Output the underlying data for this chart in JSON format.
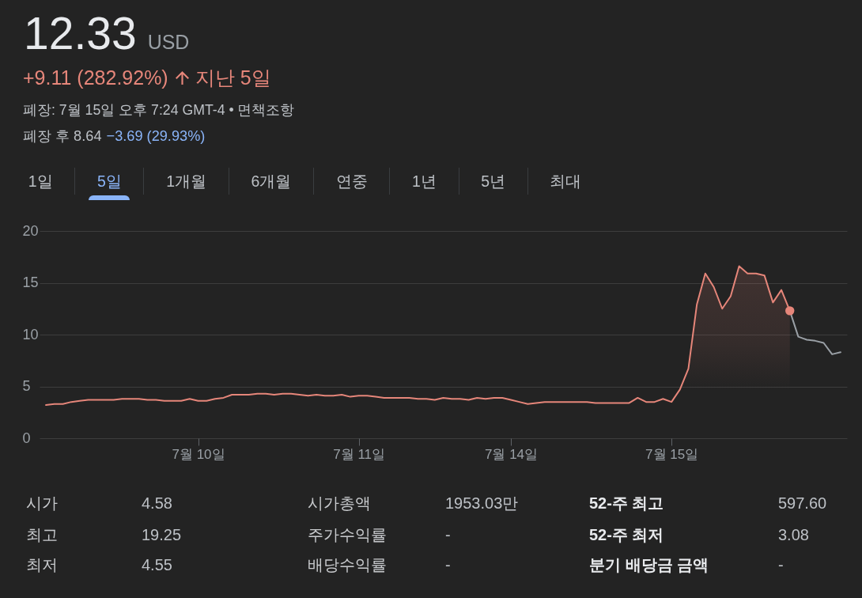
{
  "chart_data": [
    {
      "type": "other",
      "title": "12.33",
      "subtitle": "USD",
      "annotations": [
        "+9.11 (282.92%)",
        "지난 5일",
        "폐장: 7월 15일 오후 7:24 GMT-4 • 면책조항",
        "폐장 후 8.64",
        "−3.69 (29.93%)"
      ]
    },
    {
      "type": "other",
      "categories": [
        "1일",
        "5일",
        "1개월",
        "6개월",
        "연중",
        "1년",
        "5년",
        "최대"
      ],
      "colors": [
        "#bdc1c6",
        "#8ab4f8",
        "#bdc1c6",
        "#bdc1c6",
        "#bdc1c6",
        "#bdc1c6",
        "#bdc1c6",
        "#bdc1c6"
      ]
    },
    {
      "type": "line",
      "categories": [
        null,
        null,
        null,
        null,
        null,
        null,
        null,
        null,
        null,
        null,
        null,
        null,
        null,
        null,
        null,
        null,
        null,
        null,
        "7월 10일",
        null,
        null,
        null,
        null,
        null,
        null,
        null,
        null,
        null,
        null,
        null,
        null,
        null,
        null,
        null,
        null,
        null,
        null,
        "7월 11일",
        null,
        null,
        null,
        null,
        null,
        null,
        null,
        null,
        null,
        null,
        null,
        null,
        null,
        null,
        null,
        null,
        null,
        "7월 14일",
        null,
        null,
        null,
        null,
        null,
        null,
        null,
        null,
        null,
        null,
        null,
        null,
        null,
        null,
        null,
        null,
        null,
        null,
        "7월 15일",
        null,
        null,
        null,
        null,
        null,
        null,
        null,
        null,
        null,
        null,
        null,
        null,
        null,
        null,
        null,
        null,
        null,
        null,
        null,
        null
      ],
      "series": [
        {
          "type": "area",
          "color": "#e6867a",
          "values": [
            3.2,
            3.3,
            3.3,
            3.5,
            3.6,
            3.7,
            3.7,
            3.7,
            3.7,
            3.8,
            3.8,
            3.8,
            3.7,
            3.7,
            3.6,
            3.6,
            3.6,
            3.8,
            3.6,
            3.6,
            3.8,
            3.9,
            4.2,
            4.2,
            4.2,
            4.3,
            4.3,
            4.2,
            4.3,
            4.3,
            4.2,
            4.1,
            4.2,
            4.1,
            4.1,
            4.2,
            4.0,
            4.1,
            4.1,
            4.0,
            3.9,
            3.9,
            3.9,
            3.9,
            3.8,
            3.8,
            3.7,
            3.9,
            3.8,
            3.8,
            3.7,
            3.9,
            3.8,
            3.9,
            3.9,
            3.7,
            3.5,
            3.3,
            3.4,
            3.5,
            3.5,
            3.5,
            3.5,
            3.5,
            3.5,
            3.4,
            3.4,
            3.4,
            3.4,
            3.4,
            3.9,
            3.5,
            3.5,
            3.8,
            3.5,
            4.7,
            6.7,
            12.9,
            15.9,
            14.6,
            12.5,
            13.7,
            16.6,
            15.9,
            15.9,
            15.7,
            13.1,
            14.3,
            12.3,
            null,
            null,
            null,
            null,
            null,
            null
          ]
        },
        {
          "type": "line",
          "color": "#9aa0a6",
          "values": [
            null,
            null,
            null,
            null,
            null,
            null,
            null,
            null,
            null,
            null,
            null,
            null,
            null,
            null,
            null,
            null,
            null,
            null,
            null,
            null,
            null,
            null,
            null,
            null,
            null,
            null,
            null,
            null,
            null,
            null,
            null,
            null,
            null,
            null,
            null,
            null,
            null,
            null,
            null,
            null,
            null,
            null,
            null,
            null,
            null,
            null,
            null,
            null,
            null,
            null,
            null,
            null,
            null,
            null,
            null,
            null,
            null,
            null,
            null,
            null,
            null,
            null,
            null,
            null,
            null,
            null,
            null,
            null,
            null,
            null,
            null,
            null,
            null,
            null,
            null,
            null,
            null,
            null,
            null,
            null,
            null,
            null,
            null,
            null,
            null,
            null,
            null,
            null,
            12.3,
            9.8,
            9.5,
            9.4,
            9.2,
            8.1,
            8.3
          ]
        },
        {
          "type": "scatter",
          "color": "#e6867a",
          "marker": "circle",
          "values": [
            null,
            null,
            null,
            null,
            null,
            null,
            null,
            null,
            null,
            null,
            null,
            null,
            null,
            null,
            null,
            null,
            null,
            null,
            null,
            null,
            null,
            null,
            null,
            null,
            null,
            null,
            null,
            null,
            null,
            null,
            null,
            null,
            null,
            null,
            null,
            null,
            null,
            null,
            null,
            null,
            null,
            null,
            null,
            null,
            null,
            null,
            null,
            null,
            null,
            null,
            null,
            null,
            null,
            null,
            null,
            null,
            null,
            null,
            null,
            null,
            null,
            null,
            null,
            null,
            null,
            null,
            null,
            null,
            null,
            null,
            null,
            null,
            null,
            null,
            null,
            null,
            null,
            null,
            null,
            null,
            null,
            null,
            null,
            null,
            null,
            null,
            null,
            null,
            12.3,
            null,
            null,
            null,
            null,
            null,
            null
          ]
        }
      ],
      "ylim": [
        0,
        20
      ],
      "yticks": [
        0,
        5,
        10,
        15,
        20
      ],
      "grid": "y"
    },
    {
      "type": "other",
      "annotations": [
        "시가",
        "4.58",
        "시가총액",
        "1953.03만",
        "52-주 최고",
        "597.60",
        "최고",
        "19.25",
        "주가수익률",
        "-",
        "52-주 최저",
        "3.08",
        "최저",
        "4.55",
        "배당수익률",
        "-",
        "분기 배당금 금액",
        "-"
      ]
    }
  ]
}
